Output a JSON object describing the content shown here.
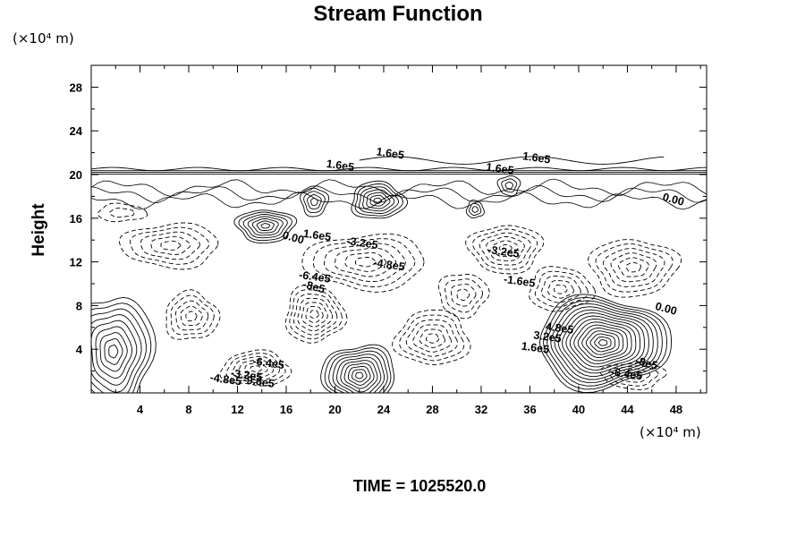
{
  "chart_data": {
    "type": "contour",
    "title": "Stream Function",
    "ylabel": "Height",
    "x_unit_label": "(×10⁴ m)",
    "y_unit_label": "(×10⁴ m)",
    "xlim": [
      0,
      50.5
    ],
    "ylim": [
      0,
      30
    ],
    "x_ticks": [
      4,
      8,
      12,
      16,
      20,
      24,
      28,
      32,
      36,
      40,
      44,
      48
    ],
    "y_ticks": [
      4,
      8,
      12,
      16,
      20,
      24,
      28
    ],
    "line_styles": {
      "positive": "solid",
      "negative": "dashed"
    },
    "contour_labels": [
      {
        "text": "1.6e5",
        "x": 24.5,
        "y": 21.6
      },
      {
        "text": "1.6e5",
        "x": 20.4,
        "y": 20.5
      },
      {
        "text": "1.6e5",
        "x": 36.5,
        "y": 21.2
      },
      {
        "text": "1.6e5",
        "x": 33.5,
        "y": 20.2
      },
      {
        "text": "0.00",
        "x": 47.7,
        "y": 17.4
      },
      {
        "text": "0.00",
        "x": 16.5,
        "y": 13.9
      },
      {
        "text": "1.6e5",
        "x": 18.5,
        "y": 14.1
      },
      {
        "text": "-3.2e5",
        "x": 22.2,
        "y": 13.4
      },
      {
        "text": "-3.2e5",
        "x": 33.8,
        "y": 12.6
      },
      {
        "text": "-4.8e5",
        "x": 24.4,
        "y": 11.4
      },
      {
        "text": "-1.6e5",
        "x": 35.1,
        "y": 9.9
      },
      {
        "text": "-6.4e5",
        "x": 18.3,
        "y": 10.3
      },
      {
        "text": "-8e5",
        "x": 18.2,
        "y": 9.4
      },
      {
        "text": "0.00",
        "x": 47.1,
        "y": 7.4
      },
      {
        "text": "1.6e5",
        "x": 36.4,
        "y": 3.8
      },
      {
        "text": "3.2e5",
        "x": 37.4,
        "y": 4.8
      },
      {
        "text": "4.8e5",
        "x": 38.4,
        "y": 5.6
      },
      {
        "text": "-6.4e5",
        "x": 14.5,
        "y": 2.4
      },
      {
        "text": "-4.8e5",
        "x": 11.0,
        "y": 0.9
      },
      {
        "text": "-3.2e5",
        "x": 12.7,
        "y": 1.3
      },
      {
        "text": "-9.6e5",
        "x": 13.7,
        "y": 0.7
      },
      {
        "text": "-6.4e5",
        "x": 43.9,
        "y": 1.4
      },
      {
        "text": "-8e5",
        "x": 45.5,
        "y": 2.4
      }
    ],
    "field_features": [
      {
        "sign": "pos",
        "x": 14.3,
        "y": 15.3,
        "rx": 2.4,
        "ry": 1.5,
        "n": 7
      },
      {
        "sign": "pos",
        "x": 23.5,
        "y": 17.6,
        "rx": 2.2,
        "ry": 1.7,
        "n": 7
      },
      {
        "sign": "pos",
        "x": 18.3,
        "y": 17.5,
        "rx": 1.1,
        "ry": 1.3,
        "n": 4
      },
      {
        "sign": "pos",
        "x": 31.5,
        "y": 16.8,
        "rx": 0.7,
        "ry": 0.8,
        "n": 3
      },
      {
        "sign": "pos",
        "x": 34.3,
        "y": 19.0,
        "rx": 0.9,
        "ry": 0.9,
        "n": 3
      },
      {
        "sign": "pos",
        "x": 42.0,
        "y": 4.6,
        "rx": 5.4,
        "ry": 4.2,
        "n": 16
      },
      {
        "sign": "pos",
        "x": 22.0,
        "y": 1.6,
        "rx": 3.0,
        "ry": 2.8,
        "n": 10
      },
      {
        "sign": "pos",
        "x": 1.8,
        "y": 3.8,
        "rx": 3.3,
        "ry": 5.2,
        "n": 9
      },
      {
        "sign": "neg",
        "x": 22.5,
        "y": 12.0,
        "rx": 5.0,
        "ry": 2.5,
        "n": 6
      },
      {
        "sign": "neg",
        "x": 34.0,
        "y": 13.2,
        "rx": 3.0,
        "ry": 2.2,
        "n": 6
      },
      {
        "sign": "neg",
        "x": 18.3,
        "y": 7.2,
        "rx": 2.4,
        "ry": 2.6,
        "n": 7
      },
      {
        "sign": "neg",
        "x": 28.0,
        "y": 5.0,
        "rx": 3.0,
        "ry": 2.5,
        "n": 6
      },
      {
        "sign": "neg",
        "x": 8.2,
        "y": 7.0,
        "rx": 2.2,
        "ry": 2.2,
        "n": 5
      },
      {
        "sign": "neg",
        "x": 13.5,
        "y": 2.2,
        "rx": 2.8,
        "ry": 1.6,
        "n": 6
      },
      {
        "sign": "neg",
        "x": 44.5,
        "y": 11.5,
        "rx": 3.6,
        "ry": 2.6,
        "n": 6
      },
      {
        "sign": "neg",
        "x": 6.5,
        "y": 13.5,
        "rx": 4.0,
        "ry": 2.0,
        "n": 5
      },
      {
        "sign": "neg",
        "x": 38.5,
        "y": 9.5,
        "rx": 2.6,
        "ry": 2.0,
        "n": 5
      },
      {
        "sign": "neg",
        "x": 30.5,
        "y": 9.0,
        "rx": 2.0,
        "ry": 2.0,
        "n": 4
      },
      {
        "sign": "neg",
        "x": 44.5,
        "y": 1.6,
        "rx": 2.6,
        "ry": 1.2,
        "n": 4
      },
      {
        "sign": "neg",
        "x": 2.5,
        "y": 16.5,
        "rx": 2.0,
        "ry": 0.8,
        "n": 2
      }
    ]
  },
  "footer": {
    "time_label": "TIME = 1025520.0"
  }
}
